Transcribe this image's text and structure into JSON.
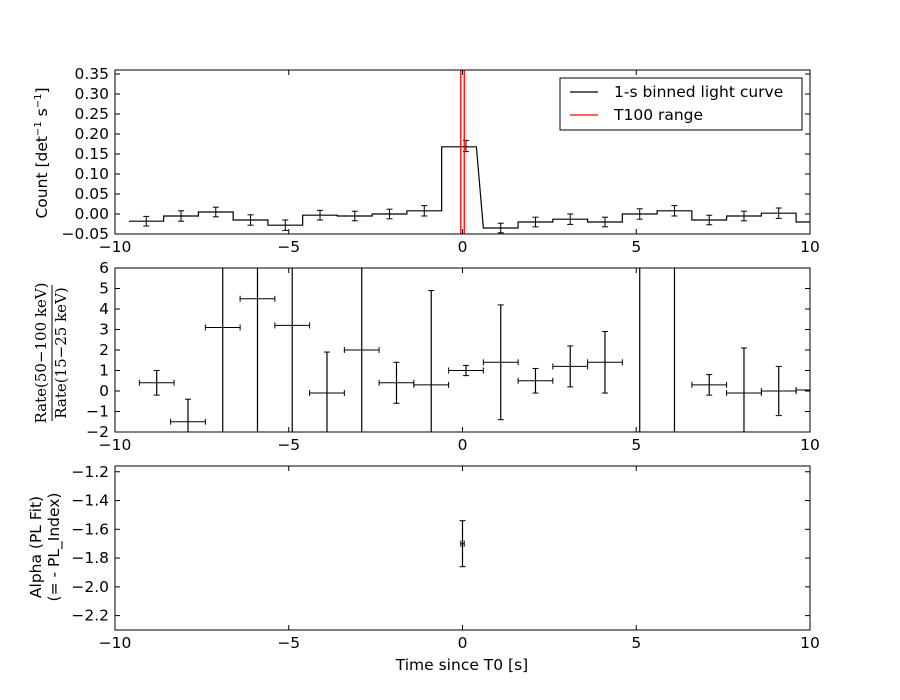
{
  "chart_data": [
    {
      "type": "line",
      "ylabel": {
        "main": "Count [det",
        "sup": "−1",
        "close": " s",
        "sup2": "−1",
        "end": "]"
      },
      "xlim": [
        -10,
        10
      ],
      "ylim": [
        -0.05,
        0.36
      ],
      "xticks": [
        -10,
        -5,
        0,
        5,
        10
      ],
      "xtick_labels": [
        "−10",
        "−5",
        "0",
        "5",
        "10"
      ],
      "yticks": [
        -0.05,
        0.0,
        0.05,
        0.1,
        0.15,
        0.2,
        0.25,
        0.3,
        0.35
      ],
      "ytick_labels": [
        "−0.05",
        "0.00",
        "0.05",
        "0.10",
        "0.15",
        "0.20",
        "0.25",
        "0.30",
        "0.35"
      ],
      "series": [
        {
          "name": "1-s binned light curve",
          "color": "#000000",
          "style": "step",
          "bins_start": [
            -9.6,
            -8.6,
            -7.6,
            -6.6,
            -5.6,
            -4.6,
            -3.6,
            -2.6,
            -1.6,
            -0.6,
            0.6,
            1.6,
            2.6,
            3.6,
            4.6,
            5.6,
            6.6,
            7.6,
            8.6,
            9.6
          ],
          "bins_end": [
            -8.6,
            -7.6,
            -6.6,
            -5.6,
            -4.6,
            -3.6,
            -2.6,
            -1.6,
            -0.6,
            0.4,
            1.6,
            2.6,
            3.6,
            4.6,
            5.6,
            6.6,
            7.6,
            8.6,
            9.6,
            10.0
          ],
          "x": [
            -9.1,
            -8.1,
            -7.1,
            -6.1,
            -5.1,
            -4.1,
            -3.1,
            -2.1,
            -1.1,
            -0.1,
            1.1,
            2.1,
            3.1,
            4.1,
            5.1,
            6.1,
            7.1,
            8.1,
            9.1,
            9.8
          ],
          "y": [
            -0.018,
            -0.005,
            0.005,
            -0.015,
            -0.028,
            -0.003,
            -0.005,
            0.0,
            0.008,
            0.168,
            -0.035,
            -0.02,
            -0.013,
            -0.02,
            0.0,
            0.008,
            -0.015,
            -0.005,
            0.002,
            -0.02
          ],
          "yerr": [
            0.012,
            0.013,
            0.012,
            0.013,
            0.013,
            0.012,
            0.012,
            0.012,
            0.013,
            0.014,
            0.012,
            0.012,
            0.013,
            0.012,
            0.013,
            0.013,
            0.012,
            0.012,
            0.013,
            0.0
          ],
          "err_x": [
            -9.1,
            -8.1,
            -7.1,
            -6.1,
            -5.1,
            -4.1,
            -3.1,
            -2.1,
            -1.1,
            0.1,
            1.1,
            2.1,
            3.1,
            4.1,
            5.1,
            6.1,
            7.1,
            8.1,
            9.1
          ]
        },
        {
          "name": "T100 range",
          "color": "#ff0000",
          "style": "vlines",
          "x": [
            -0.05,
            0.05
          ]
        }
      ],
      "legend": {
        "placement": "top-right",
        "entries": [
          "1-s binned light curve",
          "T100 range"
        ]
      }
    },
    {
      "type": "scatter",
      "ylabel": "Rate(50−100 keV) / Rate(15−25 keV)",
      "ylabel_num": "Rate(50−100 keV)",
      "ylabel_den": "Rate(15−25 keV)",
      "xlim": [
        -10,
        10
      ],
      "ylim": [
        -2,
        6
      ],
      "xticks": [
        -10,
        -5,
        0,
        5,
        10
      ],
      "xtick_labels": [
        "−10",
        "−5",
        "0",
        "5",
        "10"
      ],
      "yticks": [
        -2,
        -1,
        0,
        1,
        2,
        3,
        4,
        5,
        6
      ],
      "ytick_labels": [
        "−2",
        "−1",
        "0",
        "1",
        "2",
        "3",
        "4",
        "5",
        "6"
      ],
      "points": [
        {
          "x": -8.8,
          "xerr": 0.5,
          "y": 0.4,
          "yerr": 0.6
        },
        {
          "x": -7.9,
          "xerr": 0.5,
          "y": -1.5,
          "yerr": 1.1
        },
        {
          "x": -6.9,
          "xerr": 0.5,
          "y": 3.1,
          "yerr": 20
        },
        {
          "x": -5.9,
          "xerr": 0.5,
          "y": 4.5,
          "yerr": 20
        },
        {
          "x": -4.9,
          "xerr": 0.5,
          "y": 3.2,
          "yerr": 20
        },
        {
          "x": -3.9,
          "xerr": 0.5,
          "y": -0.1,
          "yerr": 2.0
        },
        {
          "x": -2.9,
          "xerr": 0.5,
          "y": 2.0,
          "yerr": 20
        },
        {
          "x": -1.9,
          "xerr": 0.5,
          "y": 0.4,
          "yerr": 1.0
        },
        {
          "x": -0.9,
          "xerr": 0.5,
          "y": 0.3,
          "yerr": 4.6
        },
        {
          "x": 0.1,
          "xerr": 0.5,
          "y": 1.0,
          "yerr": 0.25
        },
        {
          "x": 1.1,
          "xerr": 0.5,
          "y": 1.4,
          "yerr": 2.8
        },
        {
          "x": 2.1,
          "xerr": 0.5,
          "y": 0.5,
          "yerr": 0.6
        },
        {
          "x": 3.1,
          "xerr": 0.5,
          "y": 1.2,
          "yerr": 1.0
        },
        {
          "x": 4.1,
          "xerr": 0.5,
          "y": 1.4,
          "yerr": 1.5
        },
        {
          "x": 5.1,
          "xerr": 0.0,
          "y": 2.0,
          "yerr": 20
        },
        {
          "x": 6.1,
          "xerr": 0.0,
          "y": 2.0,
          "yerr": 20
        },
        {
          "x": 7.1,
          "xerr": 0.5,
          "y": 0.3,
          "yerr": 0.5
        },
        {
          "x": 8.1,
          "xerr": 0.5,
          "y": -0.1,
          "yerr": 2.2
        },
        {
          "x": 9.1,
          "xerr": 0.5,
          "y": 0.0,
          "yerr": 1.2
        },
        {
          "x": 9.8,
          "xerr": 0.2,
          "y": 0.05,
          "yerr": 0.0
        }
      ]
    },
    {
      "type": "scatter",
      "ylabel_line1": "Alpha (PL Fit)",
      "ylabel_line2": "(= - PL_Index)",
      "xlabel": "Time since T0 [s]",
      "xlim": [
        -10,
        10
      ],
      "ylim": [
        -2.3,
        -1.16
      ],
      "xticks": [
        -10,
        -5,
        0,
        5,
        10
      ],
      "xtick_labels": [
        "−10",
        "−5",
        "0",
        "5",
        "10"
      ],
      "yticks": [
        -2.2,
        -2.0,
        -1.8,
        -1.6,
        -1.4,
        -1.2
      ],
      "ytick_labels": [
        "−2.2",
        "−2.0",
        "−1.8",
        "−1.6",
        "−1.4",
        "−1.2"
      ],
      "points": [
        {
          "x": 0.0,
          "xerr": 0.05,
          "y": -1.7,
          "yerr_low": 0.16,
          "yerr_high": 0.16
        }
      ]
    }
  ]
}
